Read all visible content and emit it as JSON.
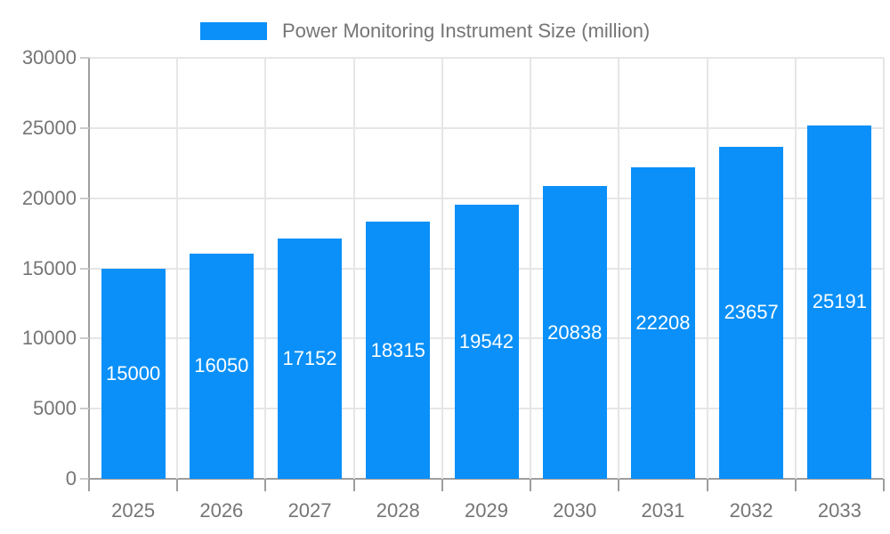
{
  "legend": {
    "label": "Power Monitoring Instrument Size (million)"
  },
  "chart_data": {
    "type": "bar",
    "title": "Power Monitoring Instrument Size (million)",
    "series_name": "Power Monitoring Instrument Size (million)",
    "categories": [
      "2025",
      "2026",
      "2027",
      "2028",
      "2029",
      "2030",
      "2031",
      "2032",
      "2033"
    ],
    "values": [
      15000,
      16050,
      17152,
      18315,
      19542,
      20838,
      22208,
      23657,
      25191
    ],
    "value_labels": [
      "15000",
      "16050",
      "17152",
      "18315",
      "19542",
      "20838",
      "22208",
      "23657",
      "25191"
    ],
    "xlabel": "",
    "ylabel": "",
    "ylim": [
      0,
      30000
    ],
    "ytick_interval": 5000,
    "yticks": [
      0,
      5000,
      10000,
      15000,
      20000,
      25000,
      30000
    ],
    "grid": true,
    "legend_position": "top",
    "value_label_placement": "inside-center"
  },
  "colors": {
    "bar": "#0a90f8",
    "grid_light": "#e6e6e6",
    "axis": "#9e9e9e",
    "tick_dash": "#cccccc",
    "text": "#757575",
    "value_label": "#ffffff",
    "background": "#ffffff"
  }
}
